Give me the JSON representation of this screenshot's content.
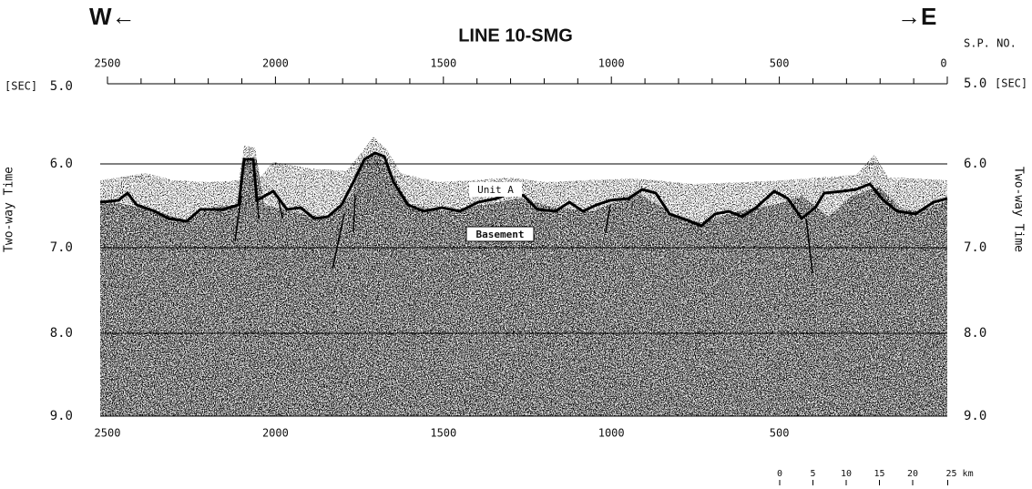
{
  "header": {
    "west": "W←",
    "east": "→E",
    "title": "LINE 10-SMG",
    "sp_label": "S.P. NO."
  },
  "top_axis": {
    "ticks": [
      "2500",
      "2000",
      "1500",
      "1000",
      "500",
      "0"
    ]
  },
  "bottom_axis": {
    "ticks": [
      "2500",
      "2000",
      "1500",
      "1000",
      "500"
    ]
  },
  "left_axis": {
    "unit": "[SEC]",
    "ticks": [
      "5.0",
      "6.0",
      "7.0",
      "8.0",
      "9.0"
    ],
    "title": "Two-way Time"
  },
  "right_axis": {
    "unit": "[SEC]",
    "ticks": [
      "5.0",
      "6.0",
      "7.0",
      "8.0",
      "9.0"
    ],
    "title": "Two-way Time"
  },
  "annotations": {
    "unit_a": "Unit A",
    "basement": "Basement"
  },
  "scale_bar": {
    "labels": [
      "0",
      "5",
      "10",
      "15",
      "20",
      "25 km"
    ]
  }
}
